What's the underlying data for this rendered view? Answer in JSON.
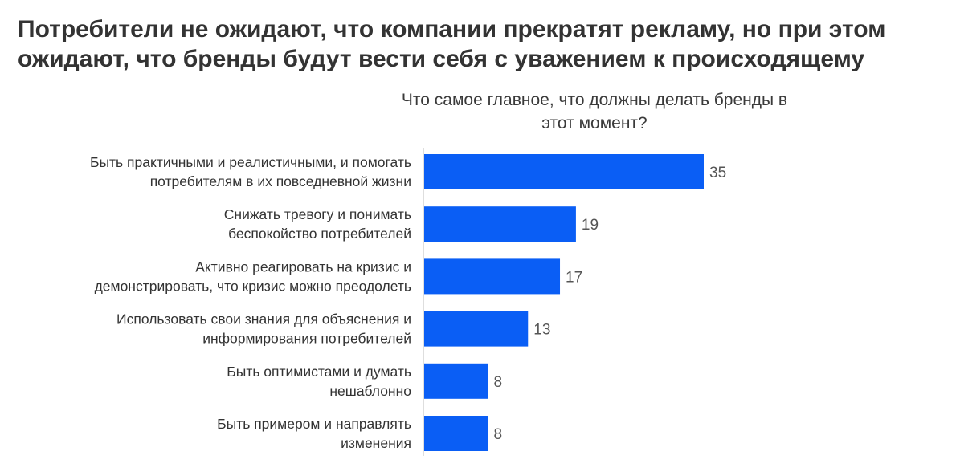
{
  "headline": {
    "line1": "Потребители не ожидают, что компании прекратят рекламу, но при этом",
    "line2": "ожидают, что бренды будут вести себя с уважением к происходящему"
  },
  "chart_data": {
    "type": "bar",
    "orientation": "horizontal",
    "title_lines": [
      "Что самое главное, что должны делать бренды в",
      "этот момент?"
    ],
    "categories": [
      [
        "Быть практичными и реалистичными, и помогать",
        "потребителям в их повседневной жизни"
      ],
      [
        "Снижать тревогу и понимать",
        "беспокойство потребителей"
      ],
      [
        "Активно реагировать на кризис и",
        "демонстрировать, что кризис можно преодолеть"
      ],
      [
        "Использовать свои знания для объяснения и",
        "информирования потребителей"
      ],
      [
        "Быть оптимистами и думать",
        "нешаблонно"
      ],
      [
        "Быть примером и направлять",
        "изменения"
      ]
    ],
    "values": [
      35,
      19,
      17,
      13,
      8,
      8
    ],
    "xlim": [
      0,
      35
    ],
    "grid": false,
    "legend": "none",
    "bar_color": "#0a5ef5"
  }
}
